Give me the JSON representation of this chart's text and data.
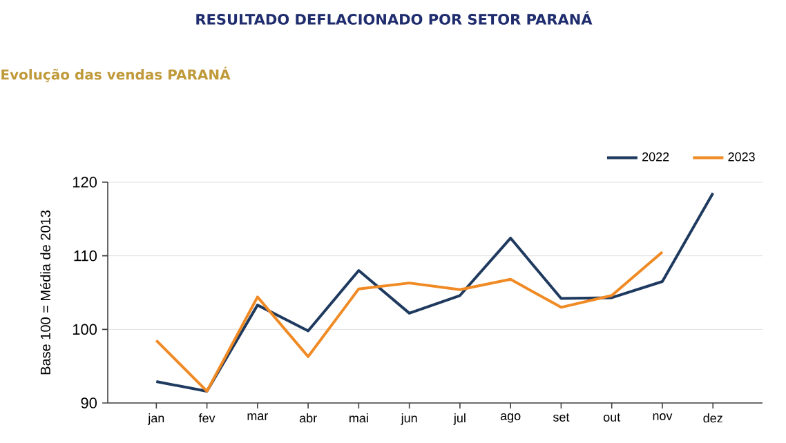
{
  "chart_data": {
    "type": "line",
    "title": "RESULTADO DEFLACIONADO POR SETOR PARANÁ",
    "subtitle": "Evolução das vendas PARANÁ",
    "ylabel": "Base 100 = Média de 2013",
    "categories": [
      "jan",
      "fev",
      "mar",
      "abr",
      "mai",
      "jun",
      "jul",
      "ago",
      "set",
      "out",
      "nov",
      "dez"
    ],
    "series": [
      {
        "name": "2022",
        "color": "#1f3a5f",
        "values": [
          92.9,
          91.6,
          103.3,
          99.8,
          108.0,
          102.2,
          104.6,
          112.4,
          104.2,
          104.3,
          106.5,
          118.5
        ]
      },
      {
        "name": "2023",
        "color": "#f08a24",
        "values": [
          98.5,
          91.6,
          104.4,
          96.3,
          105.5,
          106.3,
          105.4,
          106.8,
          103.0,
          104.6,
          110.5,
          null
        ]
      }
    ],
    "ylim": [
      90,
      120
    ],
    "yticks": [
      90,
      100,
      110,
      120
    ],
    "grid": "y",
    "legend": "top right",
    "marker": "none",
    "line_style": "solid"
  }
}
